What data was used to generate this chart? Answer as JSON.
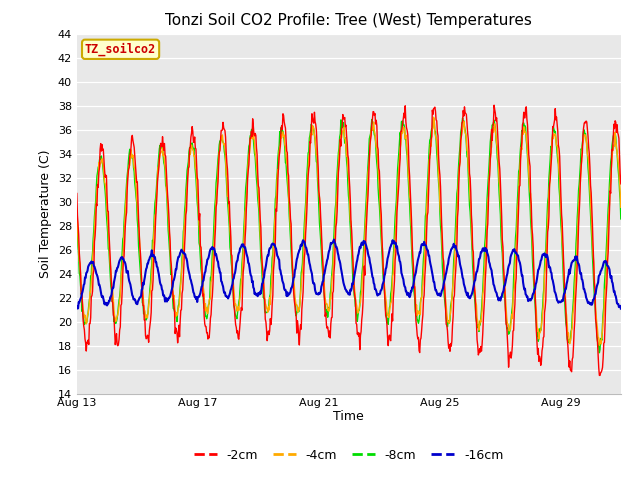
{
  "title": "Tonzi Soil CO2 Profile: Tree (West) Temperatures",
  "xlabel": "Time",
  "ylabel": "Soil Temperature (C)",
  "ylim": [
    14,
    44
  ],
  "yticks": [
    14,
    16,
    18,
    20,
    22,
    24,
    26,
    28,
    30,
    32,
    34,
    36,
    38,
    40,
    42,
    44
  ],
  "xtick_labels": [
    "Aug 13",
    "Aug 17",
    "Aug 21",
    "Aug 25",
    "Aug 29"
  ],
  "xtick_positions": [
    0,
    4,
    8,
    12,
    16
  ],
  "n_days": 18,
  "colors": {
    "-2cm": "#ff0000",
    "-4cm": "#ffaa00",
    "-8cm": "#00dd00",
    "-16cm": "#0000cc"
  },
  "legend_label": "TZ_soilco2",
  "legend_box_color": "#ffffcc",
  "legend_box_edge": "#ccaa00",
  "plot_bg_color": "#e8e8e8",
  "grid_color": "#ffffff"
}
